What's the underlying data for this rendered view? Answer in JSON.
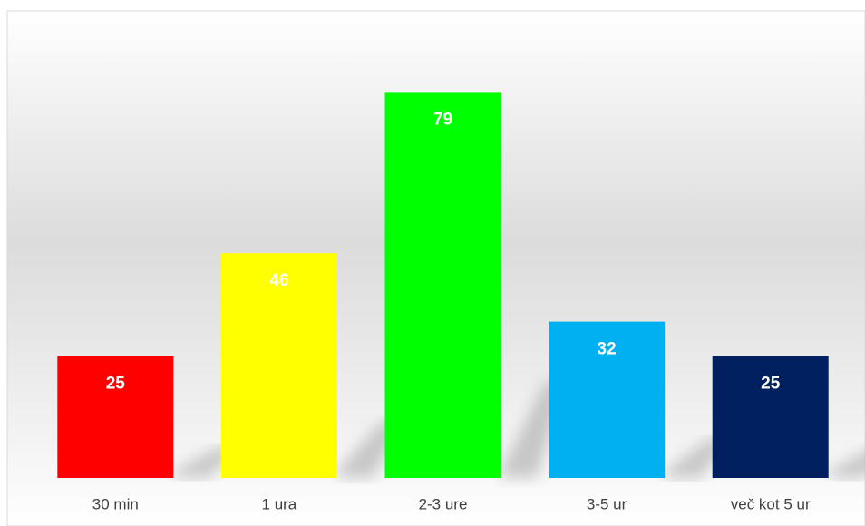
{
  "chart_data": {
    "type": "bar",
    "categories": [
      "30 min",
      "1 ura",
      "2-3 ure",
      "3-5 ur",
      "več kot 5 ur"
    ],
    "values": [
      25,
      46,
      79,
      32,
      25
    ],
    "colors": [
      "#ff0000",
      "#ffff00",
      "#00ff00",
      "#00b0f0",
      "#002060"
    ],
    "ylim": [
      0,
      80
    ]
  }
}
